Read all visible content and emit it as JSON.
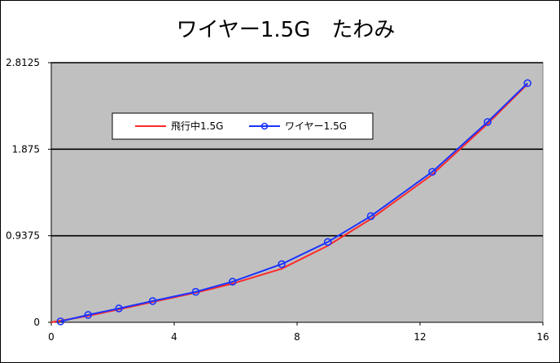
{
  "chart_data": {
    "type": "line",
    "title": "ワイヤー1.5G　たわみ",
    "xlabel": "",
    "ylabel": "",
    "xlim": [
      0,
      16
    ],
    "ylim": [
      0,
      2.8125
    ],
    "x_ticks": [
      0,
      4,
      8,
      12,
      16
    ],
    "x_tick_labels": [
      "0",
      "4",
      "8",
      "12",
      "16"
    ],
    "y_ticks": [
      0,
      0.9375,
      1.875,
      2.8125
    ],
    "y_tick_labels": [
      "0",
      "0.9375",
      "1.875",
      "2.8125"
    ],
    "grid": "horizontal",
    "legend_position": "upper-left-inside",
    "plot_background": "#c0c0c0",
    "series": [
      {
        "name": "飛行中1.5G",
        "color": "#ff2a2a",
        "marker": "none",
        "x": [
          0,
          1.2,
          2.2,
          3.3,
          4.7,
          5.9,
          7.5,
          9.0,
          10.4,
          12.4,
          14.2,
          15.5
        ],
        "y": [
          0,
          0.07,
          0.14,
          0.22,
          0.32,
          0.42,
          0.58,
          0.83,
          1.12,
          1.6,
          2.15,
          2.58
        ]
      },
      {
        "name": "ワイヤー1.5G",
        "color": "#1a33ff",
        "marker": "circle",
        "x": [
          0.3,
          1.2,
          2.2,
          3.3,
          4.7,
          5.9,
          7.5,
          9.0,
          10.4,
          12.4,
          14.2,
          15.5
        ],
        "y": [
          0.01,
          0.08,
          0.15,
          0.23,
          0.33,
          0.44,
          0.63,
          0.87,
          1.15,
          1.63,
          2.17,
          2.59
        ]
      }
    ]
  }
}
